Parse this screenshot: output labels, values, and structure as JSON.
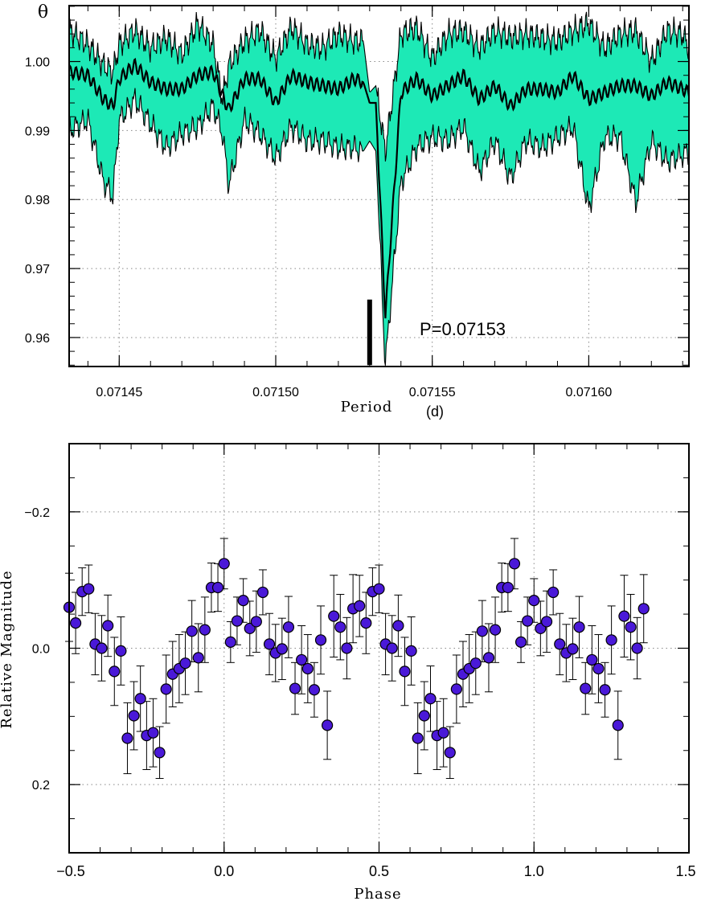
{
  "chart_data": [
    {
      "type": "line",
      "ylabel": "θ",
      "xlabel": "Period",
      "xunit": "(d)",
      "annotation": "P=0.07153",
      "xlim": [
        0.071434,
        0.071632
      ],
      "ylim": [
        0.9558,
        1.0081
      ],
      "xticks": [
        0.07145,
        0.0715,
        0.07155,
        0.0716
      ],
      "xtick_labels": [
        "0.07145",
        "0.07150",
        "0.07155",
        "0.07160"
      ],
      "yticks": [
        0.96,
        0.97,
        0.98,
        0.99,
        1.0
      ],
      "ytick_labels": [
        "0.96",
        "0.97",
        "0.98",
        "0.99",
        "1.00"
      ],
      "grid": true,
      "best_period": 0.07153,
      "minimum_theta": 0.956,
      "series": [
        {
          "role": "median",
          "color": "#000000"
        },
        {
          "role": "confidence-band",
          "color": "#1de9b6"
        }
      ],
      "envelope": {
        "x": [
          0.071434,
          0.07144,
          0.071445,
          0.071448,
          0.07145,
          0.071455,
          0.07146,
          0.071465,
          0.07147,
          0.071475,
          0.07148,
          0.071483,
          0.071485,
          0.07149,
          0.071495,
          0.0715,
          0.071505,
          0.07151,
          0.071515,
          0.07152,
          0.071525,
          0.071528,
          0.07153,
          0.071532,
          0.071535,
          0.07154,
          0.071545,
          0.07155,
          0.071555,
          0.07156,
          0.071565,
          0.07157,
          0.071575,
          0.07158,
          0.071585,
          0.07159,
          0.071595,
          0.0716,
          0.071605,
          0.07161,
          0.071615,
          0.07162,
          0.071625,
          0.07163,
          0.071632
        ],
        "upper": [
          1.0045,
          1.0025,
          0.9995,
          0.9985,
          1.0025,
          1.0045,
          1.002,
          1.0035,
          1.001,
          1.0055,
          1.0025,
          0.9945,
          0.9995,
          1.003,
          1.0045,
          1.0005,
          1.005,
          1.0025,
          1.002,
          1.004,
          1.003,
          1.003,
          0.9955,
          0.9965,
          0.987,
          1.004,
          1.005,
          1.0005,
          1.004,
          1.0045,
          1.002,
          1.0045,
          1.0035,
          1.004,
          1.0035,
          1.003,
          1.0045,
          1.0055,
          1.002,
          1.004,
          1.0045,
          1.0,
          1.0045,
          1.004,
          1.002
        ],
        "lower": [
          0.99,
          0.9915,
          0.9825,
          0.9805,
          0.9915,
          0.9945,
          0.991,
          0.9875,
          0.9895,
          0.9905,
          0.9935,
          0.9895,
          0.982,
          0.9915,
          0.9895,
          0.986,
          0.9905,
          0.9885,
          0.9885,
          0.9875,
          0.9875,
          0.987,
          0.9885,
          0.987,
          0.956,
          0.9825,
          0.9875,
          0.989,
          0.9885,
          0.9905,
          0.984,
          0.9885,
          0.983,
          0.9885,
          0.9875,
          0.989,
          0.9905,
          0.9785,
          0.989,
          0.989,
          0.9795,
          0.9885,
          0.9855,
          0.9865,
          0.987
        ],
        "median": [
          0.9985,
          0.998,
          0.9945,
          0.9935,
          0.9975,
          0.9995,
          0.997,
          0.996,
          0.996,
          0.998,
          0.9985,
          0.995,
          0.993,
          0.9975,
          0.9975,
          0.994,
          0.998,
          0.997,
          0.9965,
          0.996,
          0.9975,
          0.997,
          0.994,
          0.994,
          0.963,
          0.9955,
          0.9975,
          0.995,
          0.9965,
          0.998,
          0.9945,
          0.9965,
          0.9935,
          0.996,
          0.996,
          0.9955,
          0.998,
          0.9945,
          0.9955,
          0.9965,
          0.9965,
          0.995,
          0.997,
          0.996,
          0.9955
        ]
      }
    },
    {
      "type": "scatter",
      "xlabel": "Phase",
      "ylabel": "Relative Magnitude",
      "xlim": [
        -0.5,
        1.5
      ],
      "ylim": [
        0.3,
        -0.3
      ],
      "y_inverted": true,
      "xticks": [
        -0.5,
        0.0,
        0.5,
        1.0,
        1.5
      ],
      "xtick_labels": [
        "−0.5",
        "0.0",
        "0.5",
        "1.0",
        "1.5"
      ],
      "yticks": [
        -0.2,
        0.0,
        0.2
      ],
      "ytick_labels": [
        "−0.2",
        "0.0",
        "0.2"
      ],
      "grid": true,
      "marker_color": "#4a19d8",
      "points": [
        {
          "x": -0.5,
          "y": -0.06,
          "err": 0.05
        },
        {
          "x": -0.479,
          "y": -0.037,
          "err": 0.045
        },
        {
          "x": -0.458,
          "y": -0.083,
          "err": 0.035
        },
        {
          "x": -0.437,
          "y": -0.087,
          "err": 0.035
        },
        {
          "x": -0.416,
          "y": -0.006,
          "err": 0.045
        },
        {
          "x": -0.395,
          "y": 0.0,
          "err": 0.048
        },
        {
          "x": -0.375,
          "y": -0.033,
          "err": 0.045
        },
        {
          "x": -0.354,
          "y": 0.034,
          "err": 0.05
        },
        {
          "x": -0.333,
          "y": 0.004,
          "err": 0.05
        },
        {
          "x": -0.312,
          "y": 0.132,
          "err": 0.052
        },
        {
          "x": -0.291,
          "y": 0.099,
          "err": 0.05
        },
        {
          "x": -0.27,
          "y": 0.074,
          "err": 0.048
        },
        {
          "x": -0.25,
          "y": 0.128,
          "err": 0.05
        },
        {
          "x": -0.229,
          "y": 0.124,
          "err": 0.05
        },
        {
          "x": -0.208,
          "y": 0.153,
          "err": 0.038
        },
        {
          "x": -0.187,
          "y": 0.06,
          "err": 0.05
        },
        {
          "x": -0.166,
          "y": 0.038,
          "err": 0.048
        },
        {
          "x": -0.145,
          "y": 0.03,
          "err": 0.05
        },
        {
          "x": -0.125,
          "y": 0.022,
          "err": 0.046
        },
        {
          "x": -0.104,
          "y": -0.025,
          "err": 0.045
        },
        {
          "x": -0.083,
          "y": 0.014,
          "err": 0.05
        },
        {
          "x": -0.062,
          "y": -0.027,
          "err": 0.048
        },
        {
          "x": -0.041,
          "y": -0.089,
          "err": 0.036
        },
        {
          "x": -0.02,
          "y": -0.089,
          "err": 0.035
        },
        {
          "x": 0.0,
          "y": -0.124,
          "err": 0.037
        },
        {
          "x": 0.021,
          "y": -0.009,
          "err": 0.03
        },
        {
          "x": 0.042,
          "y": -0.04,
          "err": 0.035
        },
        {
          "x": 0.062,
          "y": -0.07,
          "err": 0.032
        },
        {
          "x": 0.083,
          "y": -0.029,
          "err": 0.04
        },
        {
          "x": 0.104,
          "y": -0.039,
          "err": 0.045
        },
        {
          "x": 0.125,
          "y": -0.082,
          "err": 0.033
        },
        {
          "x": 0.146,
          "y": -0.006,
          "err": 0.045
        },
        {
          "x": 0.166,
          "y": 0.007,
          "err": 0.042
        },
        {
          "x": 0.187,
          "y": 0.001,
          "err": 0.045
        },
        {
          "x": 0.208,
          "y": -0.031,
          "err": 0.045
        },
        {
          "x": 0.229,
          "y": 0.059,
          "err": 0.038
        },
        {
          "x": 0.25,
          "y": 0.017,
          "err": 0.05
        },
        {
          "x": 0.27,
          "y": 0.03,
          "err": 0.05
        },
        {
          "x": 0.291,
          "y": 0.061,
          "err": 0.04
        },
        {
          "x": 0.312,
          "y": -0.012,
          "err": 0.05
        },
        {
          "x": 0.333,
          "y": 0.113,
          "err": 0.05
        },
        {
          "x": 0.354,
          "y": -0.047,
          "err": 0.06
        },
        {
          "x": 0.375,
          "y": -0.031,
          "err": 0.048
        },
        {
          "x": 0.396,
          "y": 0.0,
          "err": 0.045
        },
        {
          "x": 0.416,
          "y": -0.058,
          "err": 0.05
        },
        {
          "x": 0.437,
          "y": -0.062,
          "err": 0.045
        },
        {
          "x": 0.458,
          "y": -0.037,
          "err": 0.045
        },
        {
          "x": 0.479,
          "y": -0.083,
          "err": 0.035
        },
        {
          "x": 0.5,
          "y": -0.087,
          "err": 0.035
        },
        {
          "x": 0.521,
          "y": -0.006,
          "err": 0.045
        },
        {
          "x": 0.542,
          "y": 0.0,
          "err": 0.048
        },
        {
          "x": 0.562,
          "y": -0.033,
          "err": 0.045
        },
        {
          "x": 0.583,
          "y": 0.034,
          "err": 0.05
        },
        {
          "x": 0.604,
          "y": 0.004,
          "err": 0.05
        },
        {
          "x": 0.625,
          "y": 0.132,
          "err": 0.052
        },
        {
          "x": 0.646,
          "y": 0.099,
          "err": 0.05
        },
        {
          "x": 0.666,
          "y": 0.074,
          "err": 0.048
        },
        {
          "x": 0.687,
          "y": 0.128,
          "err": 0.05
        },
        {
          "x": 0.708,
          "y": 0.124,
          "err": 0.05
        },
        {
          "x": 0.729,
          "y": 0.153,
          "err": 0.038
        },
        {
          "x": 0.75,
          "y": 0.06,
          "err": 0.05
        },
        {
          "x": 0.771,
          "y": 0.038,
          "err": 0.048
        },
        {
          "x": 0.791,
          "y": 0.03,
          "err": 0.05
        },
        {
          "x": 0.812,
          "y": 0.022,
          "err": 0.046
        },
        {
          "x": 0.833,
          "y": -0.025,
          "err": 0.045
        },
        {
          "x": 0.854,
          "y": 0.014,
          "err": 0.05
        },
        {
          "x": 0.875,
          "y": -0.027,
          "err": 0.048
        },
        {
          "x": 0.896,
          "y": -0.089,
          "err": 0.036
        },
        {
          "x": 0.916,
          "y": -0.089,
          "err": 0.035
        },
        {
          "x": 0.937,
          "y": -0.124,
          "err": 0.037
        },
        {
          "x": 0.958,
          "y": -0.009,
          "err": 0.03
        },
        {
          "x": 0.979,
          "y": -0.04,
          "err": 0.035
        },
        {
          "x": 1.0,
          "y": -0.07,
          "err": 0.032
        },
        {
          "x": 1.021,
          "y": -0.029,
          "err": 0.04
        },
        {
          "x": 1.041,
          "y": -0.039,
          "err": 0.045
        },
        {
          "x": 1.062,
          "y": -0.082,
          "err": 0.033
        },
        {
          "x": 1.083,
          "y": -0.006,
          "err": 0.045
        },
        {
          "x": 1.104,
          "y": 0.007,
          "err": 0.042
        },
        {
          "x": 1.125,
          "y": 0.001,
          "err": 0.045
        },
        {
          "x": 1.146,
          "y": -0.031,
          "err": 0.045
        },
        {
          "x": 1.166,
          "y": 0.059,
          "err": 0.038
        },
        {
          "x": 1.187,
          "y": 0.017,
          "err": 0.05
        },
        {
          "x": 1.208,
          "y": 0.03,
          "err": 0.05
        },
        {
          "x": 1.229,
          "y": 0.061,
          "err": 0.04
        },
        {
          "x": 1.25,
          "y": -0.012,
          "err": 0.05
        },
        {
          "x": 1.271,
          "y": 0.113,
          "err": 0.05
        },
        {
          "x": 1.291,
          "y": -0.047,
          "err": 0.06
        },
        {
          "x": 1.312,
          "y": -0.031,
          "err": 0.048
        },
        {
          "x": 1.333,
          "y": 0.0,
          "err": 0.045
        },
        {
          "x": 1.354,
          "y": -0.058,
          "err": 0.05
        }
      ]
    }
  ]
}
